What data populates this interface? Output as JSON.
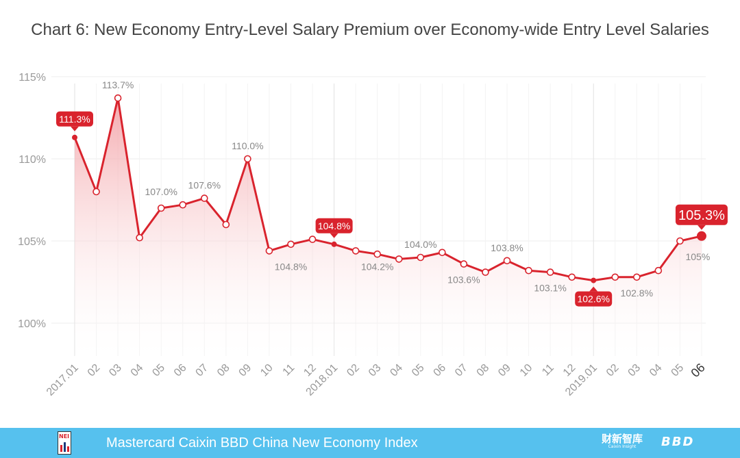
{
  "chart_data": {
    "type": "area",
    "title": "Chart 6: New Economy Entry-Level Salary Premium over Economy-wide Entry Level Salaries",
    "xlabel": "",
    "ylabel": "",
    "ylim": [
      98,
      115.5
    ],
    "yticks": [
      {
        "value": 100,
        "label": "100%"
      },
      {
        "value": 105,
        "label": "105%"
      },
      {
        "value": 110,
        "label": "110%"
      },
      {
        "value": 115,
        "label": "115%"
      }
    ],
    "categories": [
      "2017.01",
      "02",
      "03",
      "04",
      "05",
      "06",
      "07",
      "08",
      "09",
      "10",
      "11",
      "12",
      "2018.01",
      "02",
      "03",
      "04",
      "05",
      "06",
      "07",
      "08",
      "09",
      "10",
      "11",
      "12",
      "2019.01",
      "02",
      "03",
      "04",
      "05",
      "06"
    ],
    "values": [
      111.3,
      108.0,
      113.7,
      105.2,
      107.0,
      107.2,
      107.6,
      106.0,
      110.0,
      104.4,
      104.8,
      105.1,
      104.8,
      104.4,
      104.2,
      103.9,
      104.0,
      104.3,
      103.6,
      103.1,
      103.8,
      103.2,
      103.1,
      102.8,
      102.6,
      102.8,
      102.8,
      103.2,
      105.0,
      105.3
    ],
    "grid": true,
    "legend": "none",
    "labels": [
      {
        "index": 2,
        "text": "113.7%",
        "pos": "above"
      },
      {
        "index": 4,
        "text": "107.0%",
        "pos": "above",
        "ref": 5
      },
      {
        "index": 6,
        "text": "107.6%",
        "pos": "above"
      },
      {
        "index": 8,
        "text": "110.0%",
        "pos": "above"
      },
      {
        "index": 10,
        "text": "104.8%",
        "pos": "below",
        "ref": 9
      },
      {
        "index": 14,
        "text": "104.2%",
        "pos": "below",
        "ref": 13
      },
      {
        "index": 16,
        "text": "104.0%",
        "pos": "above"
      },
      {
        "index": 18,
        "text": "103.6%",
        "pos": "below"
      },
      {
        "index": 20,
        "text": "103.8%",
        "pos": "above"
      },
      {
        "index": 22,
        "text": "103.1%",
        "pos": "below"
      },
      {
        "index": 26,
        "text": "102.8%",
        "pos": "below"
      },
      {
        "index": 28,
        "text": "105%",
        "pos": "below-right"
      }
    ],
    "callouts": [
      {
        "index": 0,
        "text": "111.3%",
        "pos": "above"
      },
      {
        "index": 12,
        "text": "104.8%",
        "pos": "above"
      },
      {
        "index": 24,
        "text": "102.6%",
        "pos": "below"
      },
      {
        "index": 29,
        "text": "105.3%",
        "pos": "above",
        "size": "large"
      }
    ],
    "colors": {
      "line": "#d9232d",
      "callout": "#d9232d",
      "fill_top": "#f08a90",
      "label": "#888888",
      "axis_text": "#999999",
      "grid": "#eeeeee"
    }
  },
  "footer": {
    "title": "Mastercard Caixin BBD China New Economy Index",
    "brand_cn": "财新智库",
    "brand_sub": "Caixin Insight",
    "brand_bbd": "BBD",
    "logo_text": "NEI",
    "background": "#56c1ee"
  }
}
